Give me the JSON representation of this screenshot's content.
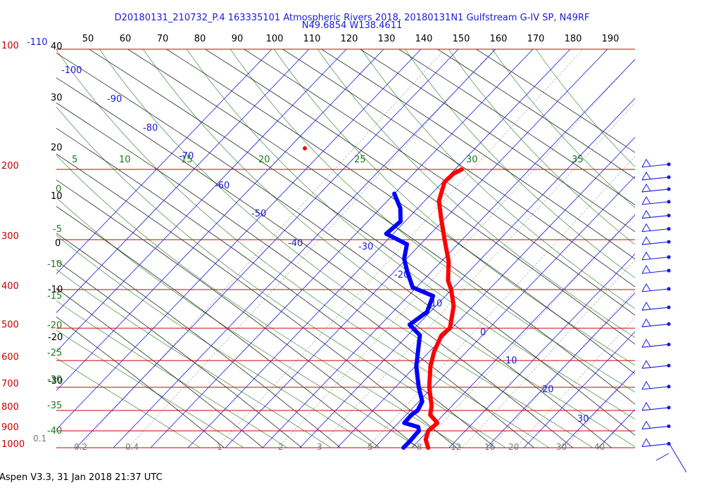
{
  "header": {
    "line1": "D20180131_210732_P.4 163335101 Atmospheric Rivers 2018, 20180131N1 Gulfstream G-IV SP, N49RF",
    "line2": "N49.6854 W138.4611"
  },
  "footer": "Aspen V3.3, 31 Jan 2018  21:37 UTC",
  "colors": {
    "isobar": "#cc0000",
    "isotherm": "#1a1adc",
    "dry_adiabat": "#000000",
    "moist_adiabat": "#1a7a1a",
    "mixing_ratio": "#888888",
    "temperature": "#ff0000",
    "dewpoint": "#0000ff",
    "wind": "#1a1adc"
  },
  "chart_data": {
    "type": "skew-t",
    "top_ticks": [
      "50",
      "60",
      "70",
      "80",
      "90",
      "100",
      "110",
      "120",
      "130",
      "140",
      "150",
      "160",
      "170",
      "180",
      "190"
    ],
    "pressure_labels": [
      "100",
      "200",
      "300",
      "400",
      "500",
      "600",
      "700",
      "800",
      "900",
      "1000"
    ],
    "corner_label": "-110",
    "isotherm_labels": [
      "-100",
      "-90",
      "-80",
      "-70",
      "-60",
      "-50",
      "-40",
      "-30",
      "-20",
      "-10",
      "0",
      "10",
      "20",
      "30"
    ],
    "moist_top_labels": [
      "5",
      "10",
      "15",
      "20",
      "25",
      "30",
      "35"
    ],
    "moist_left_labels": [
      "0",
      "-5",
      "-10",
      "-15",
      "-20",
      "-25",
      "-30",
      "-35",
      "-40"
    ],
    "height_labels": [
      "40",
      "30",
      "20",
      "10",
      "0",
      "-10",
      "-20",
      "-30"
    ],
    "mixing_ratio_labels": [
      "0.1",
      "0.2",
      "0.4",
      "1",
      "2",
      "3",
      "5",
      "8",
      "12",
      "16",
      "20",
      "30",
      "40"
    ],
    "temperature_profile": [
      {
        "p": 1000,
        "t": 10.2
      },
      {
        "p": 950,
        "t": 7.4
      },
      {
        "p": 900,
        "t": 5.8
      },
      {
        "p": 860,
        "t": 6.2
      },
      {
        "p": 820,
        "t": 2.1
      },
      {
        "p": 780,
        "t": 0.2
      },
      {
        "p": 700,
        "t": -5.4
      },
      {
        "p": 620,
        "t": -10.6
      },
      {
        "p": 570,
        "t": -13.5
      },
      {
        "p": 520,
        "t": -15.8
      },
      {
        "p": 500,
        "t": -15.4
      },
      {
        "p": 470,
        "t": -17.7
      },
      {
        "p": 440,
        "t": -20.2
      },
      {
        "p": 400,
        "t": -25.2
      },
      {
        "p": 380,
        "t": -28.4
      },
      {
        "p": 340,
        "t": -33.3
      },
      {
        "p": 300,
        "t": -40.1
      },
      {
        "p": 265,
        "t": -46.7
      },
      {
        "p": 240,
        "t": -51.8
      },
      {
        "p": 215,
        "t": -55.3
      },
      {
        "p": 205,
        "t": -55.1
      },
      {
        "p": 200,
        "t": -54.0
      }
    ],
    "dewpoint_profile": [
      {
        "p": 1000,
        "t": 3.6
      },
      {
        "p": 960,
        "t": 3.6
      },
      {
        "p": 900,
        "t": 3.3
      },
      {
        "p": 880,
        "t": 2.1
      },
      {
        "p": 860,
        "t": -2.7
      },
      {
        "p": 820,
        "t": -2.9
      },
      {
        "p": 800,
        "t": -2.4
      },
      {
        "p": 760,
        "t": -3.5
      },
      {
        "p": 700,
        "t": -8.2
      },
      {
        "p": 620,
        "t": -14.4
      },
      {
        "p": 520,
        "t": -21.6
      },
      {
        "p": 490,
        "t": -27.1
      },
      {
        "p": 455,
        "t": -25.8
      },
      {
        "p": 415,
        "t": -28.4
      },
      {
        "p": 395,
        "t": -36.1
      },
      {
        "p": 360,
        "t": -41.8
      },
      {
        "p": 335,
        "t": -45.9
      },
      {
        "p": 308,
        "t": -49.0
      },
      {
        "p": 290,
        "t": -57.3
      },
      {
        "p": 270,
        "t": -56.7
      },
      {
        "p": 250,
        "t": -60.3
      },
      {
        "p": 230,
        "t": -65.7
      }
    ],
    "wind_barbs": [
      {
        "p": 195
      },
      {
        "p": 210
      },
      {
        "p": 225
      },
      {
        "p": 242
      },
      {
        "p": 262
      },
      {
        "p": 283
      },
      {
        "p": 305
      },
      {
        "p": 333
      },
      {
        "p": 360
      },
      {
        "p": 400
      },
      {
        "p": 445
      },
      {
        "p": 490
      },
      {
        "p": 550
      },
      {
        "p": 620
      },
      {
        "p": 700
      },
      {
        "p": 790
      },
      {
        "p": 880
      },
      {
        "p": 980
      }
    ]
  }
}
